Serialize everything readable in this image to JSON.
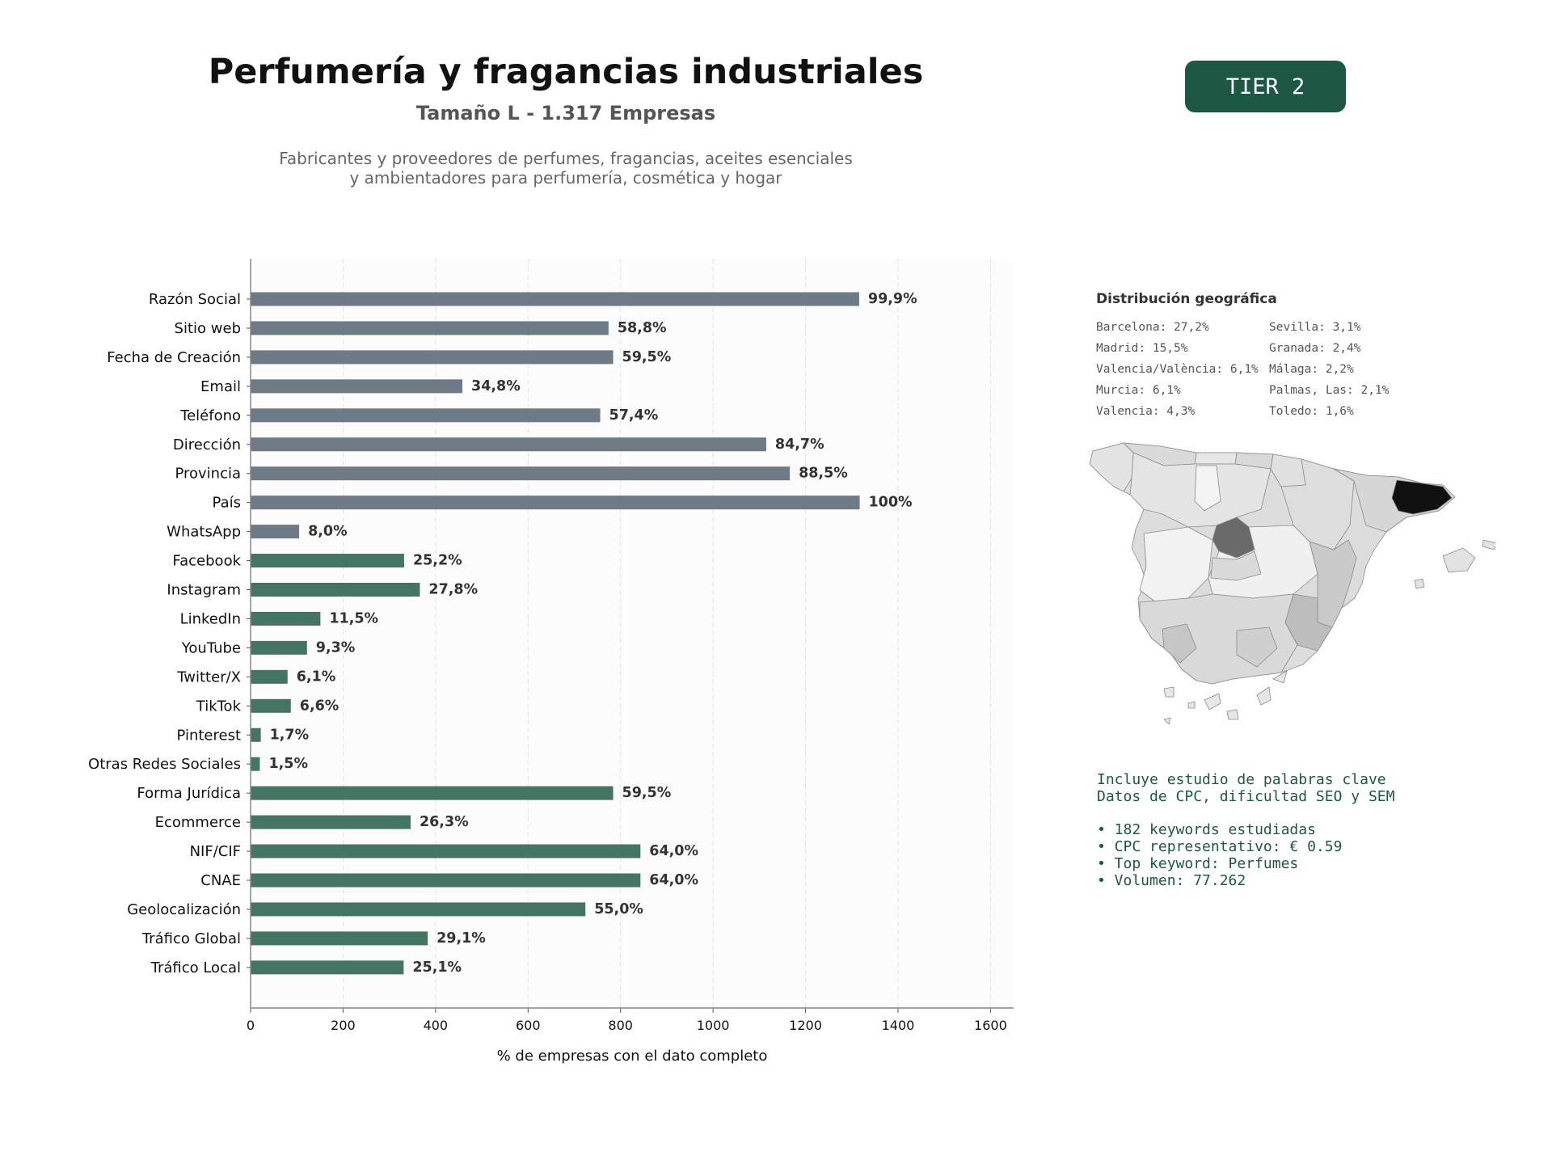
{
  "header": {
    "title": "Perfumería y fragancias industriales",
    "subtitle": "Tamaño L - 1.317 Empresas",
    "description_line1": "Fabricantes y proveedores de perfumes, fragancias, aceites esenciales",
    "description_line2": "y ambientadores para perfumería, cosmética y hogar",
    "tier_badge": "TIER 2"
  },
  "colors": {
    "bar_gray": "#6e7a86",
    "bar_green": "#447563",
    "tier_bg": "#1d5844",
    "keyword_text": "#1d5844"
  },
  "chart_data": {
    "type": "bar",
    "orientation": "horizontal",
    "total_companies": 1317,
    "xlabel": "% de empresas con el dato completo",
    "xlim": [
      0,
      1650
    ],
    "xticks": [
      0,
      200,
      400,
      600,
      800,
      1000,
      1200,
      1400,
      1600
    ],
    "grid": "vertical dashed",
    "categories": [
      "Razón Social",
      "Sitio web",
      "Fecha de Creación",
      "Email",
      "Teléfono",
      "Dirección",
      "Provincia",
      "País",
      "WhatsApp",
      "Facebook",
      "Instagram",
      "LinkedIn",
      "YouTube",
      "Twitter/X",
      "TikTok",
      "Pinterest",
      "Otras Redes Sociales",
      "Forma Jurídica",
      "Ecommerce",
      "NIF/CIF",
      "CNAE",
      "Geolocalización",
      "Tráfico Global",
      "Tráfico Local"
    ],
    "labels": [
      "99,9%",
      "58,8%",
      "59,5%",
      "34,8%",
      "57,4%",
      "84,7%",
      "88,5%",
      "100%",
      "8,0%",
      "25,2%",
      "27,8%",
      "11,5%",
      "9,3%",
      "6,1%",
      "6,6%",
      "1,7%",
      "1,5%",
      "59,5%",
      "26,3%",
      "64,0%",
      "64,0%",
      "55,0%",
      "29,1%",
      "25,1%"
    ],
    "values": [
      1316,
      774,
      784,
      458,
      756,
      1115,
      1166,
      1317,
      105,
      332,
      366,
      151,
      122,
      80,
      87,
      22,
      20,
      784,
      346,
      843,
      843,
      724,
      383,
      331
    ],
    "color_groups": [
      "gray",
      "gray",
      "gray",
      "gray",
      "gray",
      "gray",
      "gray",
      "gray",
      "gray",
      "green",
      "green",
      "green",
      "green",
      "green",
      "green",
      "green",
      "green",
      "green",
      "green",
      "green",
      "green",
      "green",
      "green",
      "green"
    ]
  },
  "geo": {
    "title": "Distribución geográfica",
    "col1": [
      "Barcelona: 27,2%",
      "Madrid: 15,5%",
      "Valencia/València: 6,1%",
      "Murcia: 6,1%",
      "Valencia: 4,3%"
    ],
    "col2": [
      "Sevilla: 3,1%",
      "Granada: 2,4%",
      "Málaga: 2,2%",
      "Palmas, Las: 2,1%",
      "Toledo: 1,6%"
    ]
  },
  "keywords": {
    "line1": "Incluye estudio de palabras clave",
    "line2": "Datos de CPC, dificultad SEO y SEM",
    "bullet1": "• 182 keywords estudiadas",
    "bullet2": "• CPC representativo: € 0.59",
    "bullet3": "• Top keyword: Perfumes",
    "bullet4": "• Volumen: 77.262"
  }
}
